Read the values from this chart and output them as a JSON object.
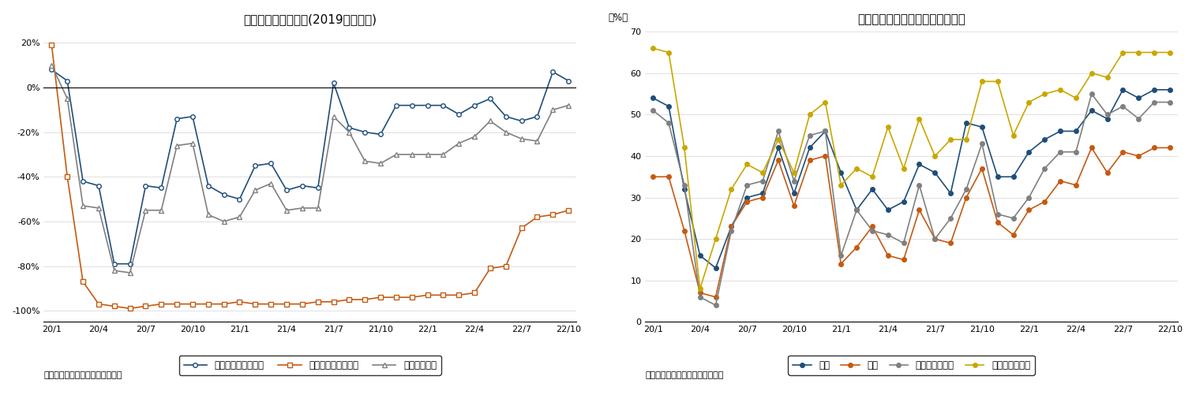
{
  "chart1": {
    "title": "延べ宿泊者数の推移(2019年同月比)",
    "xlabel_ticks": [
      "20/1",
      "20/4",
      "20/7",
      "20/10",
      "21/1",
      "21/4",
      "21/7",
      "21/10",
      "22/1",
      "22/4",
      "22/7",
      "22/10"
    ],
    "ylim": [
      -105,
      25
    ],
    "yticks": [
      20,
      0,
      -20,
      -40,
      -60,
      -80,
      -100
    ],
    "ytick_labels": [
      "20%",
      "0%",
      "-20%",
      "-40%",
      "-60%",
      "-80%",
      "-100%"
    ],
    "series": {
      "japanese": {
        "label": "日本人延べ宿泊者数",
        "color": "#1f4e79",
        "marker": "o",
        "markerfacecolor": "white",
        "data": [
          8,
          3,
          -42,
          -44,
          -79,
          -79,
          -44,
          -45,
          -14,
          -13,
          -44,
          -48,
          -50,
          -35,
          -34,
          -46,
          -44,
          -45,
          2,
          -18,
          -20,
          -21,
          -8,
          -8,
          -8,
          -8,
          -12,
          -8,
          -5,
          -13,
          -15,
          -13,
          7,
          3
        ]
      },
      "foreign": {
        "label": "外国人延べ宿泊者数",
        "color": "#c55a11",
        "marker": "s",
        "markerfacecolor": "white",
        "data": [
          19,
          -40,
          -87,
          -97,
          -98,
          -99,
          -98,
          -97,
          -97,
          -97,
          -97,
          -97,
          -96,
          -97,
          -97,
          -97,
          -97,
          -96,
          -96,
          -95,
          -95,
          -94,
          -94,
          -94,
          -93,
          -93,
          -93,
          -92,
          -81,
          -80,
          -63,
          -58,
          -57,
          -55
        ]
      },
      "total": {
        "label": "延べ宿泊者数",
        "color": "#808080",
        "marker": "^",
        "markerfacecolor": "white",
        "data": [
          10,
          -5,
          -53,
          -54,
          -82,
          -83,
          -55,
          -55,
          -26,
          -25,
          -57,
          -60,
          -58,
          -46,
          -43,
          -55,
          -54,
          -54,
          -13,
          -20,
          -33,
          -34,
          -30,
          -30,
          -30,
          -30,
          -25,
          -22,
          -15,
          -20,
          -23,
          -24,
          -10,
          -8
        ]
      }
    },
    "source": "（出典）観光庁「宿泊旅行統計」",
    "tick_positions": [
      0,
      3,
      6,
      9,
      12,
      15,
      18,
      21,
      24,
      27,
      30,
      33
    ]
  },
  "chart2": {
    "title": "宿泊施設タイプ別客室稼働率推移",
    "ylabel_text": "（%）",
    "xlabel_ticks": [
      "20/1",
      "20/4",
      "20/7",
      "20/10",
      "21/1",
      "21/4",
      "21/7",
      "21/10",
      "22/1",
      "22/4",
      "22/7",
      "22/10"
    ],
    "ylim": [
      0,
      70
    ],
    "yticks": [
      0,
      10,
      20,
      30,
      40,
      50,
      60,
      70
    ],
    "series": {
      "all": {
        "label": "全体",
        "color": "#1f4e79",
        "marker": "o",
        "data": [
          54,
          52,
          32,
          16,
          13,
          23,
          30,
          31,
          42,
          31,
          42,
          46,
          36,
          27,
          32,
          27,
          29,
          38,
          36,
          31,
          48,
          47,
          35,
          35,
          41,
          44,
          46,
          46,
          51,
          49,
          56,
          54,
          56,
          56
        ]
      },
      "ryokan": {
        "label": "旅館",
        "color": "#c55a11",
        "marker": "o",
        "data": [
          35,
          35,
          22,
          7,
          6,
          23,
          29,
          30,
          39,
          28,
          39,
          40,
          14,
          18,
          23,
          16,
          15,
          27,
          20,
          19,
          30,
          37,
          24,
          21,
          27,
          29,
          34,
          33,
          42,
          36,
          41,
          40,
          42,
          42
        ]
      },
      "resort": {
        "label": "リゾートホテル",
        "color": "#808080",
        "marker": "o",
        "data": [
          51,
          48,
          33,
          6,
          4,
          22,
          33,
          34,
          46,
          34,
          45,
          46,
          16,
          27,
          22,
          21,
          19,
          33,
          20,
          25,
          32,
          43,
          26,
          25,
          30,
          37,
          41,
          41,
          55,
          50,
          52,
          49,
          53,
          53
        ]
      },
      "business": {
        "label": "ビジネスホテル",
        "color": "#c9a700",
        "marker": "o",
        "data": [
          66,
          65,
          42,
          8,
          20,
          32,
          38,
          36,
          44,
          36,
          50,
          53,
          33,
          37,
          35,
          47,
          37,
          49,
          40,
          44,
          44,
          58,
          58,
          45,
          53,
          55,
          56,
          54,
          60,
          59,
          65,
          65,
          65,
          65
        ]
      }
    },
    "source": "（出典）観光庁「宿泊旅行統計」",
    "tick_positions": [
      0,
      3,
      6,
      9,
      12,
      15,
      18,
      21,
      24,
      27,
      30,
      33
    ]
  }
}
